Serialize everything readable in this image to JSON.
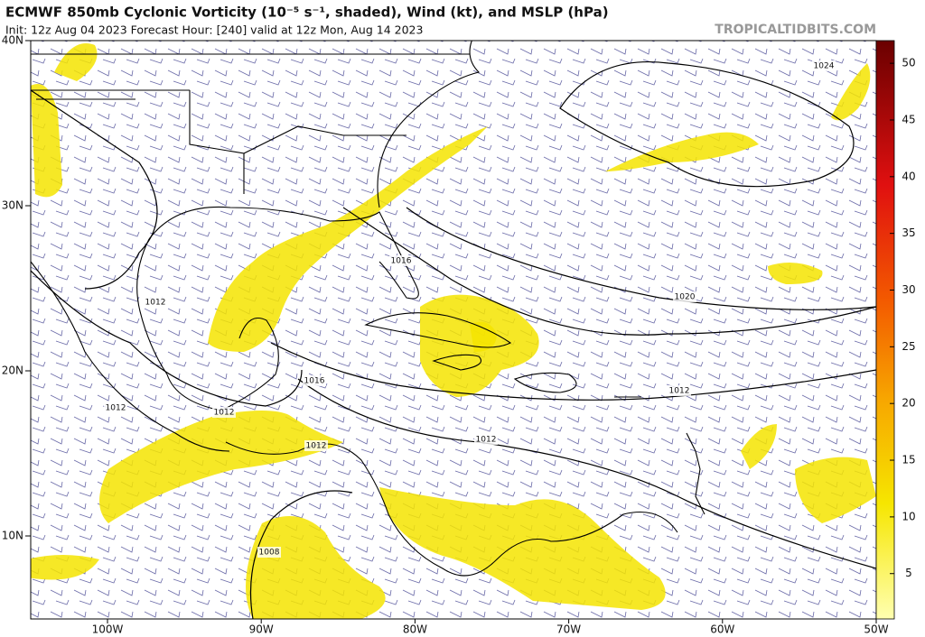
{
  "header": {
    "title": "ECMWF 850mb Cyclonic Vorticity (10⁻⁵ s⁻¹, shaded), Wind (kt), and MSLP (hPa)",
    "subtitle": "Init: 12z Aug 04 2023   Forecast Hour: [240]   valid at 12z Mon, Aug 14 2023",
    "credit": "TROPICALTIDBITS.COM"
  },
  "map": {
    "lat_labels": [
      "40N",
      "30N",
      "20N",
      "10N"
    ],
    "lon_labels": [
      "100W",
      "90W",
      "80W",
      "70W",
      "60W",
      "50W"
    ],
    "isobar_labels": [
      "1024",
      "1016",
      "1020",
      "1012",
      "1016",
      "1012",
      "1012",
      "1012",
      "1012",
      "1012",
      "1008"
    ]
  },
  "colorbar": {
    "range": [
      1,
      52
    ],
    "ticks": [
      5,
      10,
      15,
      20,
      25,
      30,
      35,
      40,
      45,
      50
    ]
  }
}
